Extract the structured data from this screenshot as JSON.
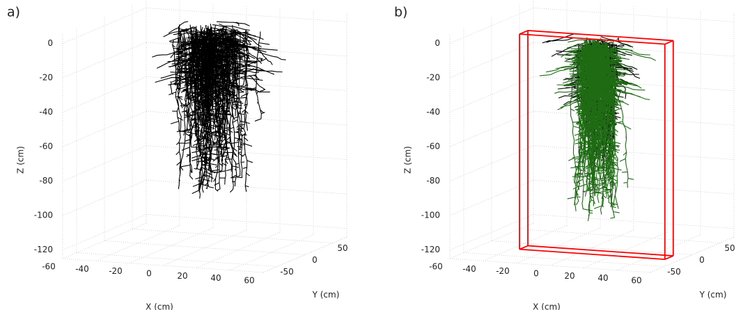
{
  "chart_data": [
    {
      "type": "root3d",
      "panel_label": "a)",
      "xlabel": "X  (cm)",
      "ylabel": "Y  (cm)",
      "zlabel": "Z (cm)",
      "xlim": [
        -60,
        60
      ],
      "ylim": [
        -75,
        75
      ],
      "zlim": [
        -125,
        5
      ],
      "xticks": [
        -60,
        -40,
        -20,
        0,
        20,
        40,
        60
      ],
      "yticks": [
        -50,
        0,
        50
      ],
      "zticks": [
        0,
        -20,
        -40,
        -60,
        -80,
        -100,
        -120
      ],
      "grid": true,
      "root_colors": [
        "#000000"
      ]
    },
    {
      "type": "root3d",
      "panel_label": "b)",
      "xlabel": "X  (cm)",
      "ylabel": "Y  (cm)",
      "zlabel": "Z (cm)",
      "xlim": [
        -60,
        60
      ],
      "ylim": [
        -75,
        75
      ],
      "zlim": [
        -125,
        5
      ],
      "xticks": [
        -60,
        -40,
        -20,
        0,
        20,
        40,
        60
      ],
      "yticks": [
        -50,
        0,
        50
      ],
      "zticks": [
        0,
        -20,
        -40,
        -60,
        -80,
        -100,
        -120
      ],
      "grid": true,
      "root_colors": [
        "#000000",
        "#1e6b14"
      ],
      "box": {
        "xlim": [
          -25,
          62
        ],
        "ylim": [
          -55,
          -40
        ],
        "zlim": [
          -120,
          5
        ],
        "color": "#ff0000"
      }
    }
  ]
}
